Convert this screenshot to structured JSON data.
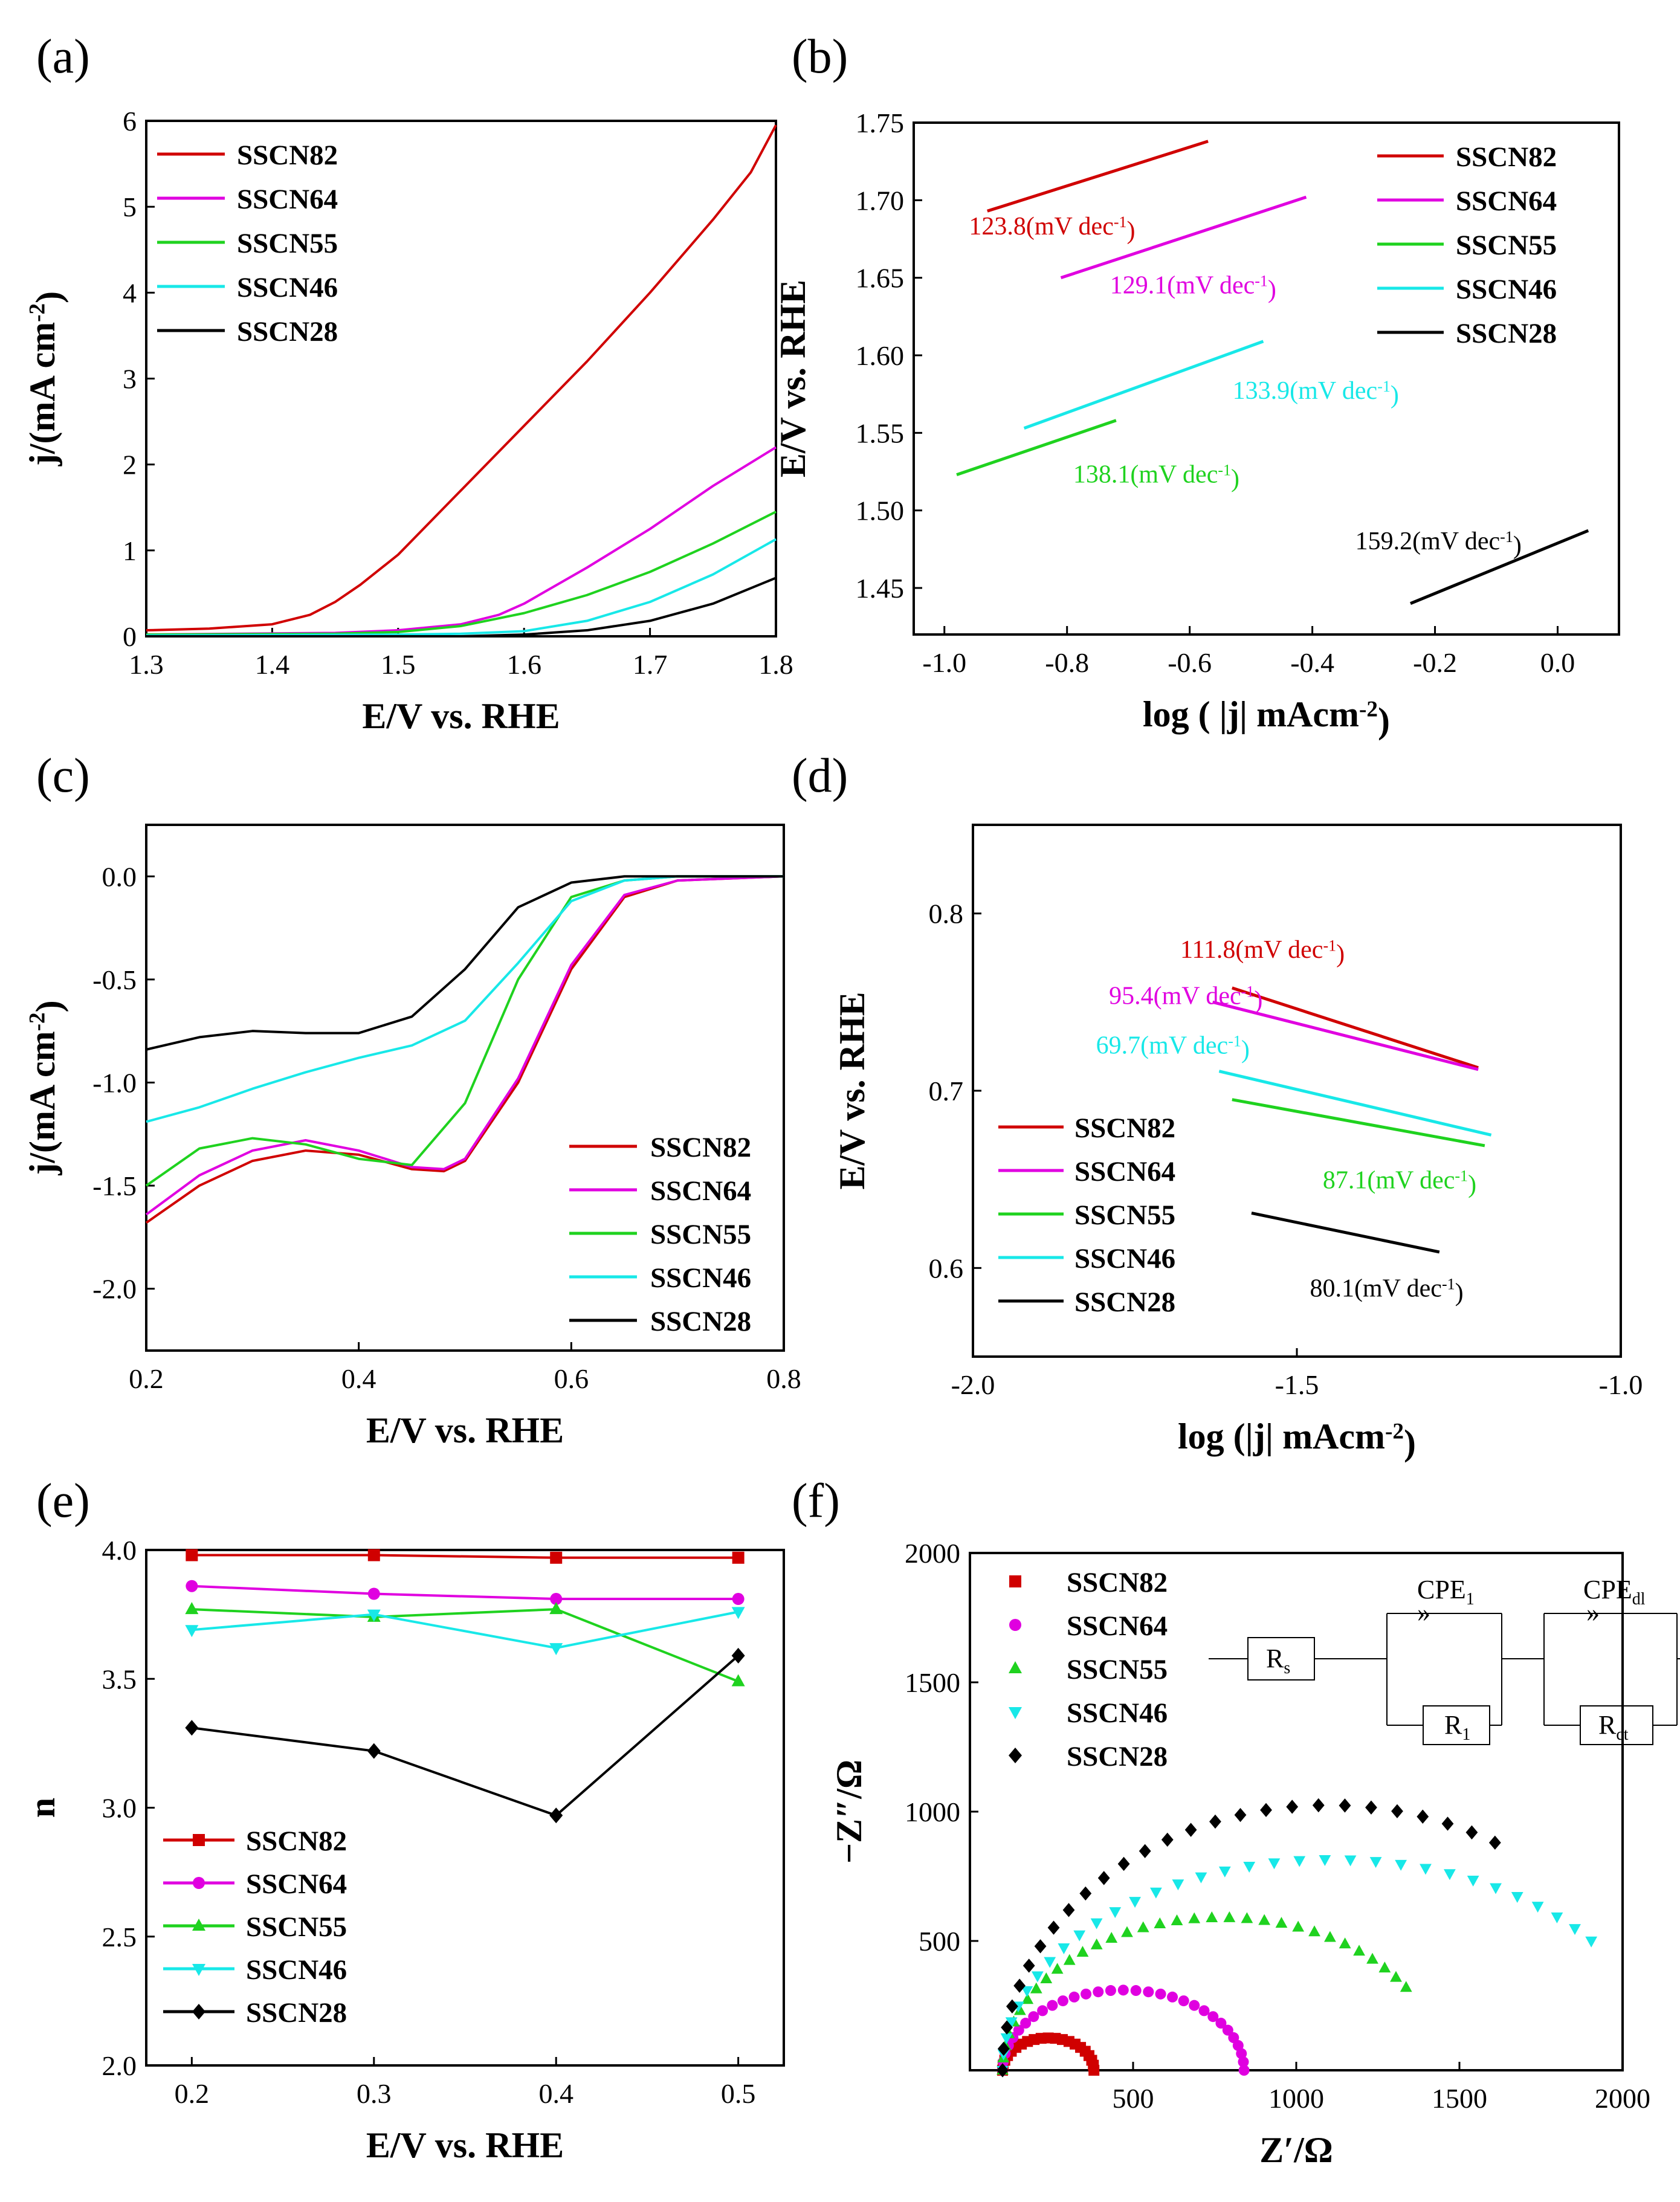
{
  "colors": {
    "SSCN82": "#d00000",
    "SSCN64": "#e000e0",
    "SSCN55": "#1fd21f",
    "SSCN46": "#18e8e8",
    "SSCN28": "#000000"
  },
  "chart_data": [
    {
      "panel": "(a)",
      "type": "line",
      "xlabel": "E/V vs. RHE",
      "ylabel": "j/(mA cm⁻²)",
      "xlim": [
        1.3,
        1.8
      ],
      "ylim": [
        0,
        6
      ],
      "xticks": [
        "1.3",
        "1.4",
        "1.5",
        "1.6",
        "1.7",
        "1.8"
      ],
      "yticks": [
        "0",
        "1",
        "2",
        "3",
        "4",
        "5",
        "6"
      ],
      "legend_position": "top-left",
      "series": [
        {
          "name": "SSCN82",
          "x": [
            1.3,
            1.35,
            1.4,
            1.43,
            1.45,
            1.47,
            1.5,
            1.55,
            1.6,
            1.65,
            1.7,
            1.75,
            1.78,
            1.8
          ],
          "y": [
            0.07,
            0.09,
            0.14,
            0.25,
            0.4,
            0.6,
            0.95,
            1.7,
            2.45,
            3.2,
            4.0,
            4.85,
            5.4,
            5.95
          ]
        },
        {
          "name": "SSCN64",
          "x": [
            1.3,
            1.45,
            1.5,
            1.55,
            1.58,
            1.6,
            1.65,
            1.7,
            1.75,
            1.8
          ],
          "y": [
            0.02,
            0.04,
            0.07,
            0.14,
            0.25,
            0.38,
            0.8,
            1.25,
            1.75,
            2.2
          ]
        },
        {
          "name": "SSCN55",
          "x": [
            1.3,
            1.45,
            1.5,
            1.55,
            1.6,
            1.65,
            1.7,
            1.75,
            1.8
          ],
          "y": [
            0.02,
            0.03,
            0.05,
            0.12,
            0.27,
            0.48,
            0.75,
            1.08,
            1.45
          ]
        },
        {
          "name": "SSCN46",
          "x": [
            1.3,
            1.5,
            1.55,
            1.6,
            1.65,
            1.7,
            1.75,
            1.8
          ],
          "y": [
            0.01,
            0.02,
            0.03,
            0.06,
            0.18,
            0.4,
            0.72,
            1.13
          ]
        },
        {
          "name": "SSCN28",
          "x": [
            1.3,
            1.55,
            1.6,
            1.65,
            1.7,
            1.75,
            1.8
          ],
          "y": [
            0.0,
            0.0,
            0.02,
            0.07,
            0.18,
            0.38,
            0.68
          ]
        }
      ]
    },
    {
      "panel": "(b)",
      "type": "line",
      "xlabel": "log ( |j| mAcm⁻²)",
      "ylabel": "E/V vs. RHE",
      "xlim": [
        -1.05,
        0.1
      ],
      "ylim": [
        1.42,
        1.75
      ],
      "xticks": [
        "-1.0",
        "-0.8",
        "-0.6",
        "-0.4",
        "-0.2",
        "0.0"
      ],
      "yticks": [
        "1.45",
        "1.50",
        "1.55",
        "1.60",
        "1.65",
        "1.70",
        "1.75"
      ],
      "legend_position": "top-right",
      "series": [
        {
          "name": "SSCN82",
          "x": [
            -0.93,
            -0.57
          ],
          "y": [
            1.693,
            1.738
          ]
        },
        {
          "name": "SSCN64",
          "x": [
            -0.81,
            -0.41
          ],
          "y": [
            1.65,
            1.702
          ]
        },
        {
          "name": "SSCN55",
          "x": [
            -0.98,
            -0.72
          ],
          "y": [
            1.523,
            1.558
          ]
        },
        {
          "name": "SSCN46",
          "x": [
            -0.87,
            -0.48
          ],
          "y": [
            1.553,
            1.609
          ]
        },
        {
          "name": "SSCN28",
          "x": [
            -0.24,
            0.05
          ],
          "y": [
            1.44,
            1.487
          ]
        }
      ],
      "annotations": [
        {
          "text": "123.8(mV dec⁻¹)",
          "series": "SSCN82",
          "x": -0.96,
          "y": 1.678
        },
        {
          "text": "129.1(mV dec⁻¹)",
          "series": "SSCN64",
          "x": -0.73,
          "y": 1.64
        },
        {
          "text": "133.9(mV dec⁻¹)",
          "series": "SSCN46",
          "x": -0.53,
          "y": 1.572
        },
        {
          "text": "138.1(mV dec⁻¹)",
          "series": "SSCN55",
          "x": -0.79,
          "y": 1.518
        },
        {
          "text": "159.2(mV dec⁻¹)",
          "series": "SSCN28",
          "x": -0.33,
          "y": 1.475
        }
      ]
    },
    {
      "panel": "(c)",
      "type": "line",
      "xlabel": "E/V vs. RHE",
      "ylabel": "j/(mA cm⁻²)",
      "xlim": [
        0.2,
        0.8
      ],
      "ylim": [
        -2.3,
        0.25
      ],
      "xticks": [
        "0.2",
        "0.4",
        "0.6",
        "0.8"
      ],
      "yticks": [
        "-2.0",
        "-1.5",
        "-1.0",
        "-0.5",
        "0.0"
      ],
      "legend_position": "bottom-right",
      "series": [
        {
          "name": "SSCN82",
          "x": [
            0.2,
            0.25,
            0.3,
            0.35,
            0.4,
            0.45,
            0.48,
            0.5,
            0.55,
            0.6,
            0.65,
            0.7,
            0.8
          ],
          "y": [
            -1.68,
            -1.5,
            -1.38,
            -1.33,
            -1.35,
            -1.42,
            -1.43,
            -1.38,
            -1.0,
            -0.45,
            -0.1,
            -0.02,
            0.0
          ]
        },
        {
          "name": "SSCN64",
          "x": [
            0.2,
            0.25,
            0.3,
            0.35,
            0.4,
            0.45,
            0.48,
            0.5,
            0.55,
            0.6,
            0.65,
            0.7,
            0.8
          ],
          "y": [
            -1.64,
            -1.45,
            -1.33,
            -1.28,
            -1.33,
            -1.41,
            -1.42,
            -1.37,
            -0.98,
            -0.43,
            -0.09,
            -0.02,
            0.0
          ]
        },
        {
          "name": "SSCN55",
          "x": [
            0.2,
            0.25,
            0.3,
            0.35,
            0.4,
            0.45,
            0.5,
            0.55,
            0.6,
            0.65,
            0.7,
            0.8
          ],
          "y": [
            -1.5,
            -1.32,
            -1.27,
            -1.3,
            -1.37,
            -1.4,
            -1.1,
            -0.5,
            -0.1,
            -0.02,
            0.0,
            0.0
          ]
        },
        {
          "name": "SSCN46",
          "x": [
            0.2,
            0.25,
            0.3,
            0.35,
            0.4,
            0.45,
            0.5,
            0.55,
            0.6,
            0.65,
            0.7,
            0.8
          ],
          "y": [
            -1.19,
            -1.12,
            -1.03,
            -0.95,
            -0.88,
            -0.82,
            -0.7,
            -0.42,
            -0.12,
            -0.02,
            0.0,
            0.0
          ]
        },
        {
          "name": "SSCN28",
          "x": [
            0.2,
            0.25,
            0.3,
            0.35,
            0.4,
            0.45,
            0.5,
            0.55,
            0.6,
            0.65,
            0.7,
            0.8
          ],
          "y": [
            -0.84,
            -0.78,
            -0.75,
            -0.76,
            -0.76,
            -0.68,
            -0.45,
            -0.15,
            -0.03,
            0.0,
            0.0,
            0.0
          ]
        }
      ]
    },
    {
      "panel": "(d)",
      "type": "line",
      "xlabel": "log (|j| mAcm⁻²)",
      "ylabel": "E/V vs. RHE",
      "xlim": [
        -2.0,
        -1.0
      ],
      "ylim": [
        0.55,
        0.85
      ],
      "xticks": [
        "-2.0",
        "-1.5",
        "-1.0"
      ],
      "yticks": [
        "0.6",
        "0.7",
        "0.8"
      ],
      "legend_position": "bottom-left",
      "series": [
        {
          "name": "SSCN82",
          "x": [
            -1.6,
            -1.22
          ],
          "y": [
            0.758,
            0.713
          ]
        },
        {
          "name": "SSCN64",
          "x": [
            -1.63,
            -1.22
          ],
          "y": [
            0.75,
            0.712
          ]
        },
        {
          "name": "SSCN55",
          "x": [
            -1.6,
            -1.21
          ],
          "y": [
            0.695,
            0.669
          ]
        },
        {
          "name": "SSCN46",
          "x": [
            -1.62,
            -1.2
          ],
          "y": [
            0.711,
            0.675
          ]
        },
        {
          "name": "SSCN28",
          "x": [
            -1.57,
            -1.28
          ],
          "y": [
            0.631,
            0.609
          ]
        }
      ],
      "annotations": [
        {
          "text": "111.8(mV dec⁻¹)",
          "series": "SSCN82",
          "x": -1.68,
          "y": 0.775
        },
        {
          "text": "95.4(mV dec⁻¹)",
          "series": "SSCN64",
          "x": -1.79,
          "y": 0.749
        },
        {
          "text": "69.7(mV dec⁻¹)",
          "series": "SSCN46",
          "x": -1.81,
          "y": 0.721
        },
        {
          "text": "87.1(mV dec⁻¹)",
          "series": "SSCN55",
          "x": -1.46,
          "y": 0.645
        },
        {
          "text": "80.1(mV dec⁻¹)",
          "series": "SSCN28",
          "x": -1.48,
          "y": 0.584
        }
      ]
    },
    {
      "panel": "(e)",
      "type": "line",
      "xlabel": "E/V vs. RHE",
      "ylabel": "n",
      "xlim": [
        0.175,
        0.525
      ],
      "ylim": [
        2.0,
        4.0
      ],
      "xticks": [
        "0.2",
        "0.3",
        "0.4",
        "0.5"
      ],
      "yticks": [
        "2.0",
        "2.5",
        "3.0",
        "3.5",
        "4.0"
      ],
      "legend_position": "bottom-left",
      "series": [
        {
          "name": "SSCN82",
          "marker": "square",
          "x": [
            0.2,
            0.3,
            0.4,
            0.5
          ],
          "y": [
            3.98,
            3.98,
            3.97,
            3.97
          ]
        },
        {
          "name": "SSCN64",
          "marker": "circle",
          "x": [
            0.2,
            0.3,
            0.4,
            0.5
          ],
          "y": [
            3.86,
            3.83,
            3.81,
            3.81
          ]
        },
        {
          "name": "SSCN55",
          "marker": "triangle-up",
          "x": [
            0.2,
            0.3,
            0.4,
            0.5
          ],
          "y": [
            3.77,
            3.74,
            3.77,
            3.49
          ]
        },
        {
          "name": "SSCN46",
          "marker": "triangle-down",
          "x": [
            0.2,
            0.3,
            0.4,
            0.5
          ],
          "y": [
            3.69,
            3.75,
            3.62,
            3.76
          ]
        },
        {
          "name": "SSCN28",
          "marker": "diamond",
          "x": [
            0.2,
            0.3,
            0.4,
            0.5
          ],
          "y": [
            3.31,
            3.22,
            2.97,
            3.59
          ]
        }
      ]
    },
    {
      "panel": "(f)",
      "type": "scatter",
      "xlabel": "Z′/Ω",
      "ylabel": "−Z″/Ω",
      "xlim": [
        0,
        2000
      ],
      "ylim": [
        0,
        2000
      ],
      "xticks": [
        "500",
        "1000",
        "1500",
        "2000"
      ],
      "yticks": [
        "500",
        "1000",
        "1500",
        "2000"
      ],
      "legend_position": "top-left",
      "series": [
        {
          "name": "SSCN82",
          "marker": "square",
          "semicircle": {
            "x_start": 100,
            "x_end": 380,
            "peak": 125,
            "n": 20
          }
        },
        {
          "name": "SSCN64",
          "marker": "circle",
          "semicircle": {
            "x_start": 100,
            "x_end": 840,
            "peak": 310,
            "n": 30
          }
        },
        {
          "name": "SSCN55",
          "marker": "triangle-up",
          "semicircle": {
            "x_start": 100,
            "x_end": 1380,
            "peak": 590,
            "n": 32,
            "end_y": 320
          }
        },
        {
          "name": "SSCN46",
          "marker": "triangle-down",
          "semicircle": {
            "x_start": 100,
            "x_end": 2020,
            "peak": 815,
            "n": 32,
            "end_y": 500
          }
        },
        {
          "name": "SSCN28",
          "marker": "diamond",
          "semicircle": {
            "x_start": 100,
            "x_end": 2000,
            "peak": 1025,
            "n": 26,
            "end_y": 880
          }
        }
      ],
      "circuit": {
        "rs": "R",
        "rs_sub": "s",
        "cpe1": "CPE",
        "cpe1_sub": "1",
        "r1": "R",
        "r1_sub": "1",
        "cpedl": "CPE",
        "cpedl_sub": "dl",
        "rct": "R",
        "rct_sub": "ct"
      }
    }
  ]
}
